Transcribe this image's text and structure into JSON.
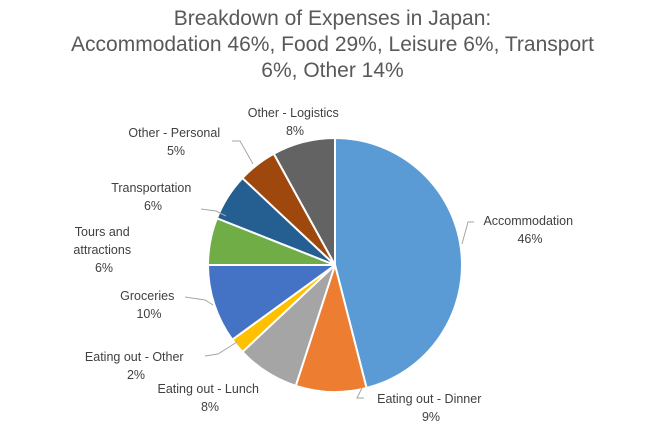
{
  "chart_data": {
    "type": "pie",
    "title": "Breakdown of Expenses in Japan:",
    "subtitle": [
      "Accommodation 46%, Food 29%, Leisure 6%, Transport",
      "6%, Other 14%"
    ],
    "start_angle_deg": 0,
    "direction": "clockwise",
    "legend": "none",
    "data_labels": "category name + percentage",
    "slices": [
      {
        "label": "Accommodation",
        "value": 46,
        "pct": "46%",
        "color": "#5B9BD5"
      },
      {
        "label": "Eating out - Dinner",
        "value": 9,
        "pct": "9%",
        "color": "#ED7D31"
      },
      {
        "label": "Eating out - Lunch",
        "value": 8,
        "pct": "8%",
        "color": "#A5A5A5"
      },
      {
        "label": "Eating out - Other",
        "value": 2,
        "pct": "2%",
        "color": "#FFC000"
      },
      {
        "label": "Groceries",
        "value": 10,
        "pct": "10%",
        "color": "#4472C4"
      },
      {
        "label": "Tours and attractions",
        "value": 6,
        "pct": "6%",
        "color": "#70AD47"
      },
      {
        "label": "Transportation",
        "value": 6,
        "pct": "6%",
        "color": "#255E91"
      },
      {
        "label": "Other - Personal",
        "value": 5,
        "pct": "5%",
        "color": "#9E480E"
      },
      {
        "label": "Other - Logistics",
        "value": 8,
        "pct": "8%",
        "color": "#636363"
      }
    ]
  },
  "labels": {
    "accommodation": [
      "Accommodation",
      "46%"
    ],
    "dinner": [
      "Eating out - Dinner",
      "9%"
    ],
    "lunch": [
      "Eating out - Lunch",
      "8%"
    ],
    "eo_other": [
      "Eating out - Other",
      "2%"
    ],
    "groceries": [
      "Groceries",
      "10%"
    ],
    "tours": [
      "Tours and",
      "attractions",
      "6%"
    ],
    "transport": [
      "Transportation",
      "6%"
    ],
    "personal": [
      "Other - Personal",
      "5%"
    ],
    "logistics": [
      "Other - Logistics",
      "8%"
    ]
  }
}
